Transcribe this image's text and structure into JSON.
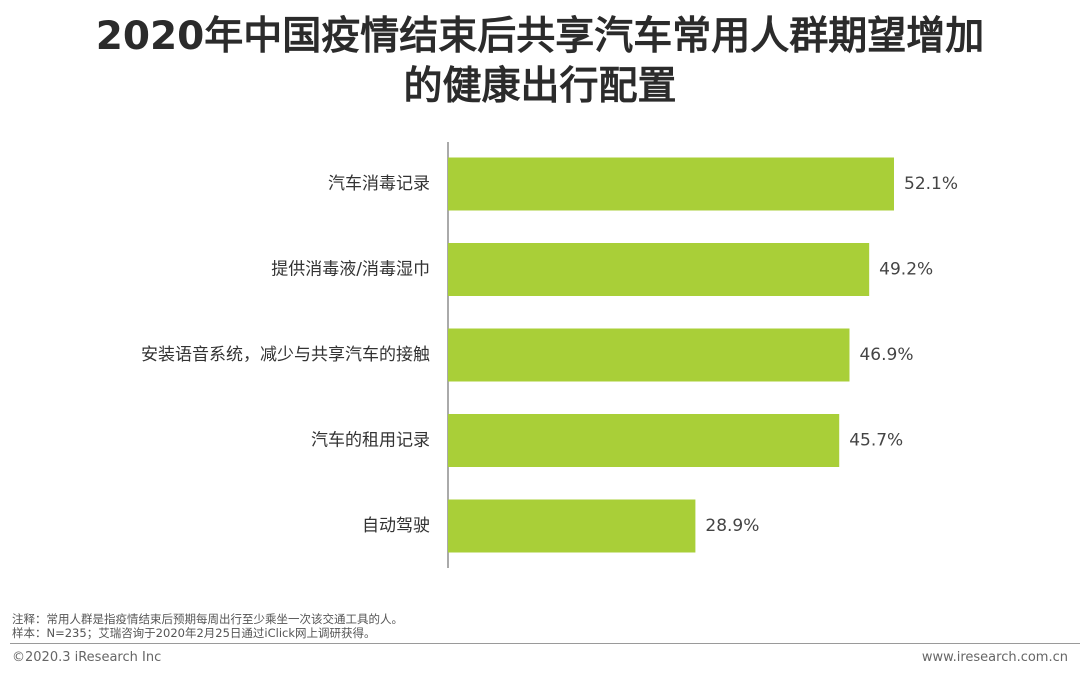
{
  "title": {
    "line1": "2020年中国疫情结束后共享汽车常用人群期望增加",
    "line2": "的健康出行配置"
  },
  "chart_data": {
    "type": "bar",
    "orientation": "horizontal",
    "categories": [
      "汽车消毒记录",
      "提供消毒液/消毒湿巾",
      "安装语音系统，减少与共享汽车的接触",
      "汽车的租用记录",
      "自动驾驶"
    ],
    "values": [
      52.1,
      49.2,
      46.9,
      45.7,
      28.9
    ],
    "value_labels": [
      "52.1%",
      "49.2%",
      "46.9%",
      "45.7%",
      "28.9%"
    ],
    "unit": "%",
    "xlim": [
      0,
      52.1
    ],
    "grid": false,
    "bar_color": "#a9cf38"
  },
  "notes": {
    "line1": "注释：常用人群是指疫情结束后预期每周出行至少乘坐一次该交通工具的人。",
    "line2": "样本：N=235；艾瑞咨询于2020年2月25日通过iClick网上调研获得。"
  },
  "footer": {
    "copyright": "©2020.3 iResearch Inc",
    "website": "www.iresearch.com.cn"
  }
}
